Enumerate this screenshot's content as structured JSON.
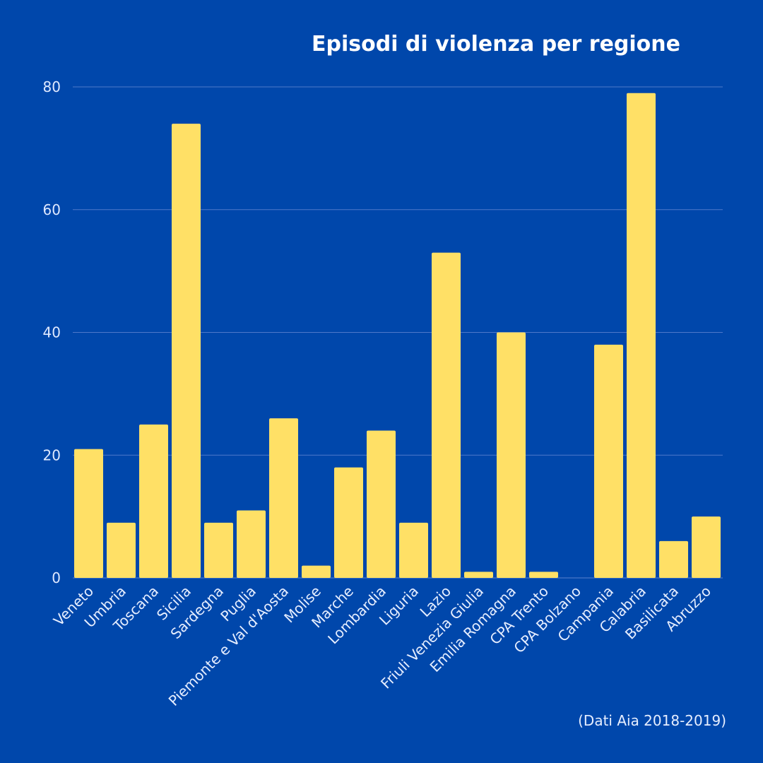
{
  "chart_data": {
    "type": "bar",
    "title": "Episodi di violenza per regione",
    "source_note": "(Dati Aia 2018-2019)",
    "xlabel": "",
    "ylabel": "",
    "ylim": [
      0,
      80
    ],
    "yticks": [
      0,
      20,
      40,
      60,
      80
    ],
    "grid": true,
    "categories": [
      "Veneto",
      "Umbria",
      "Toscana",
      "Sicilia",
      "Sardegna",
      "Puglia",
      "Piemonte e Val d'Aosta",
      "Molise",
      "Marche",
      "Lombardia",
      "Liguria",
      "Lazio",
      "Friuli Venezia Giulia",
      "Emilia Romagna",
      "CPA Trento",
      "CPA Bolzano",
      "Campania",
      "Calabria",
      "Basilicata",
      "Abruzzo"
    ],
    "values": [
      21,
      9,
      25,
      74,
      9,
      11,
      26,
      2,
      18,
      24,
      9,
      53,
      1,
      40,
      1,
      0,
      38,
      79,
      6,
      10
    ],
    "colors": {
      "background": "#0047AB",
      "bar": "#FFE066",
      "grid": "#4f79c9",
      "text": "#ffffff"
    }
  }
}
